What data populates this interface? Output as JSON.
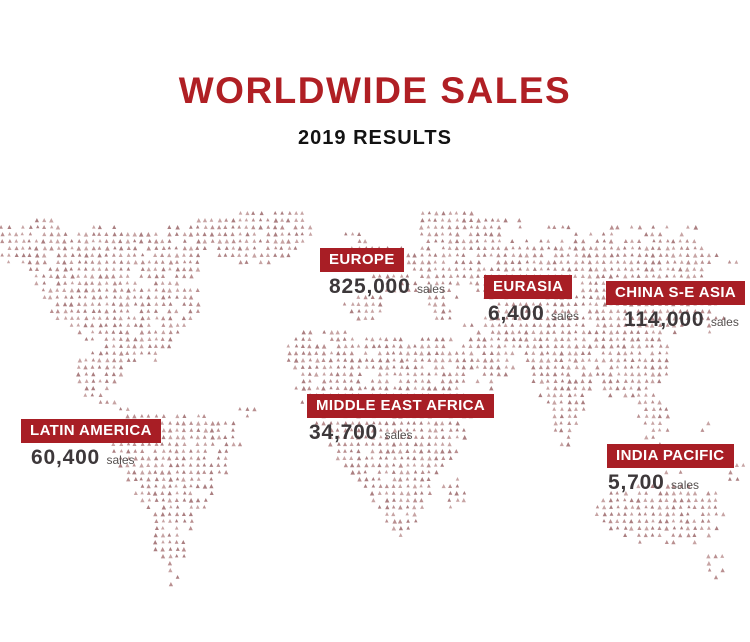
{
  "title": "WORLDWIDE SALES",
  "subtitle": "2019 RESULTS",
  "colors": {
    "accent": "#a81e25",
    "title": "#b01f24",
    "number": "#3d383a",
    "unit": "#55504f",
    "dot_palette": [
      "#aa7e80",
      "#b98f90",
      "#c7a4a4"
    ]
  },
  "regions": [
    {
      "id": "europe",
      "label": "EUROPE",
      "value": "825,000",
      "unit": "sales"
    },
    {
      "id": "eurasia",
      "label": "EURASIA",
      "value": "6,400",
      "unit": "sales"
    },
    {
      "id": "china-se-asia",
      "label": "CHINA S-E ASIA",
      "value": "114,000",
      "unit": "sales"
    },
    {
      "id": "latin-america",
      "label": "LATIN AMERICA",
      "value": "60,400",
      "unit": "sales"
    },
    {
      "id": "middle-east-africa",
      "label": "MIDDLE EAST AFRICA",
      "value": "34,700",
      "unit": "sales"
    },
    {
      "id": "india-pacific",
      "label": "INDIA PACIFIC",
      "value": "5,700",
      "unit": "sales"
    }
  ],
  "chart_data": {
    "type": "map",
    "title": "WORLDWIDE SALES",
    "subtitle": "2019 RESULTS",
    "categories": [
      "EUROPE",
      "EURASIA",
      "CHINA S-E ASIA",
      "LATIN AMERICA",
      "MIDDLE EAST AFRICA",
      "INDIA PACIFIC"
    ],
    "values": [
      825000,
      6400,
      114000,
      60400,
      34700,
      5700
    ],
    "unit": "sales",
    "legend_position": "none",
    "notes": "dotted world map infographic; values shown as callout badges over each region"
  }
}
